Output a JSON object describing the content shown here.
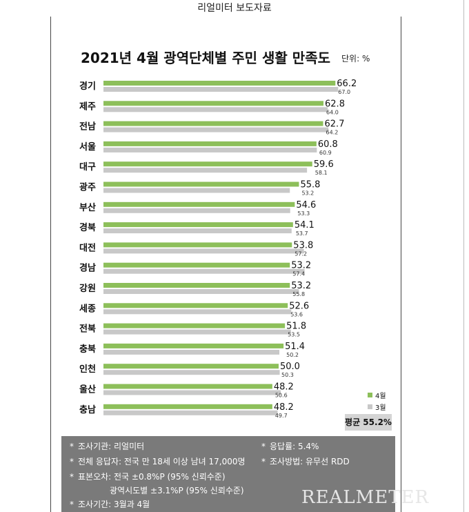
{
  "header": {
    "text": "리얼미터 보도자료"
  },
  "chart_data": {
    "type": "bar",
    "orientation": "horizontal",
    "title": "2021년 4월 광역단체별 주민 생활 만족도",
    "unit": "단위: %",
    "categories": [
      "경기",
      "제주",
      "전남",
      "서울",
      "대구",
      "광주",
      "부산",
      "경북",
      "대전",
      "경남",
      "강원",
      "세종",
      "전북",
      "충북",
      "인천",
      "울산",
      "충남"
    ],
    "series": [
      {
        "name": "4월",
        "color": "#8dbf5a",
        "values": [
          66.2,
          62.8,
          62.7,
          60.8,
          59.6,
          55.8,
          54.6,
          54.1,
          53.8,
          53.2,
          53.2,
          52.6,
          51.8,
          51.4,
          50.0,
          48.2,
          48.2
        ]
      },
      {
        "name": "3월",
        "color": "#c8c8c8",
        "values": [
          67.0,
          64.0,
          64.2,
          60.9,
          58.1,
          53.2,
          53.3,
          53.7,
          57.2,
          57.4,
          55.8,
          53.6,
          53.5,
          50.2,
          50.3,
          50.6,
          49.7
        ]
      }
    ],
    "average_label": "평균 55.2%",
    "legend_position": "bottom-right",
    "grid": false
  },
  "footnote": {
    "items": [
      {
        "star": "*",
        "label": "조사기관: 리얼미터"
      },
      {
        "star": "*",
        "label": "응답률: 5.4%"
      },
      {
        "star": "*",
        "label": "전체 응답자: 전국 만 18세 이상 남녀 17,000명"
      },
      {
        "star": "*",
        "label": "조사방법: 유무선 RDD"
      },
      {
        "star": "*",
        "label": "표본오차: 전국 ±0.8%P (95% 신뢰수준)"
      },
      {
        "star": "",
        "label": "광역시도별 ±3.1%P (95% 신뢰수준)"
      },
      {
        "star": "*",
        "label": "조사기간: 3월과 4월"
      }
    ],
    "watermark": "REALMETER"
  }
}
